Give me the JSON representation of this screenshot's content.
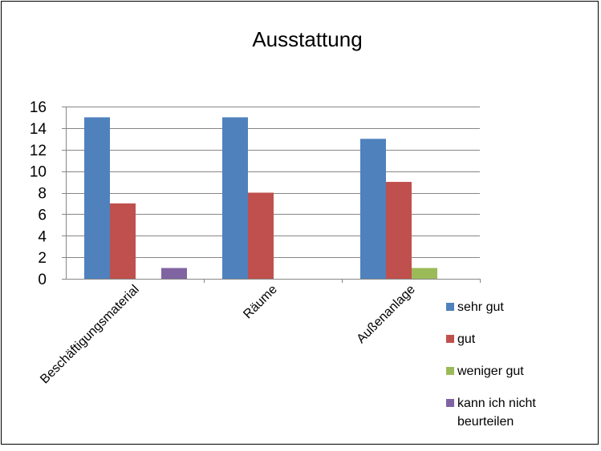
{
  "chart_data": {
    "type": "bar",
    "title": "Ausstattung",
    "xlabel": "",
    "ylabel": "",
    "categories": [
      "Beschäftigungsmaterial",
      "Räume",
      "Außenanlage"
    ],
    "series": [
      {
        "name": "sehr gut",
        "values": [
          15,
          15,
          13
        ],
        "color": "#4f81bd"
      },
      {
        "name": "gut",
        "values": [
          7,
          8,
          9
        ],
        "color": "#c0504d"
      },
      {
        "name": "weniger gut",
        "values": [
          0,
          0,
          1
        ],
        "color": "#9bbb59"
      },
      {
        "name": "kann ich nicht beurteilen",
        "values": [
          1,
          0,
          0
        ],
        "color": "#8064a2"
      }
    ],
    "ylim": [
      0,
      16
    ],
    "yticks": [
      0,
      2,
      4,
      6,
      8,
      10,
      12,
      14,
      16
    ],
    "grid": true,
    "legend_position": "bottom-right"
  }
}
